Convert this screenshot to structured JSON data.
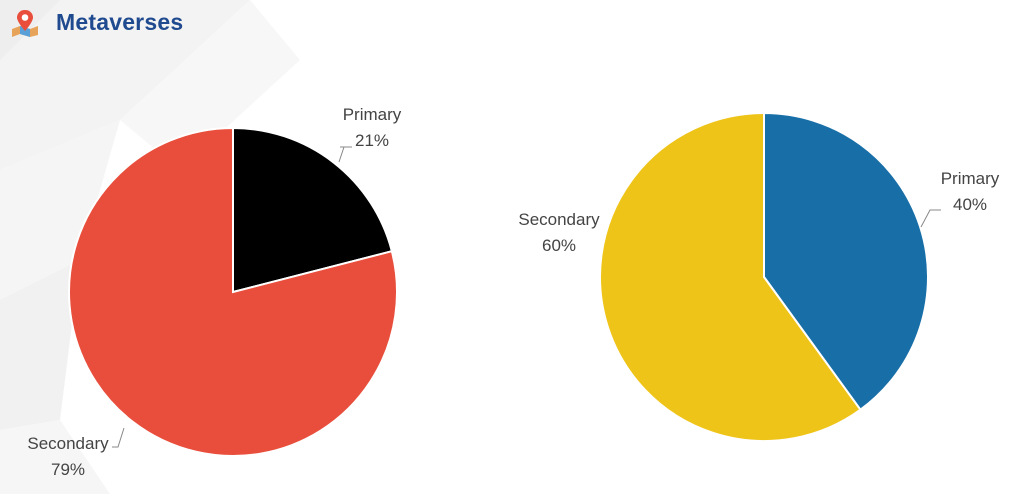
{
  "header": {
    "title": "Metaverses",
    "icon": "map-pin-icon"
  },
  "colors": {
    "title": "#1f4a8f",
    "left_primary": "#000000",
    "left_secondary": "#e94e3c",
    "right_primary": "#186fa8",
    "right_secondary": "#efc419"
  },
  "chart_data": [
    {
      "type": "pie",
      "title": "",
      "categories": [
        "Primary",
        "Secondary"
      ],
      "values": [
        21,
        79
      ],
      "value_labels": [
        "21%",
        "79%"
      ],
      "colors": [
        "#000000",
        "#e94e3c"
      ]
    },
    {
      "type": "pie",
      "title": "",
      "categories": [
        "Primary",
        "Secondary"
      ],
      "values": [
        40,
        60
      ],
      "value_labels": [
        "40%",
        "60%"
      ],
      "colors": [
        "#186fa8",
        "#efc419"
      ]
    }
  ]
}
